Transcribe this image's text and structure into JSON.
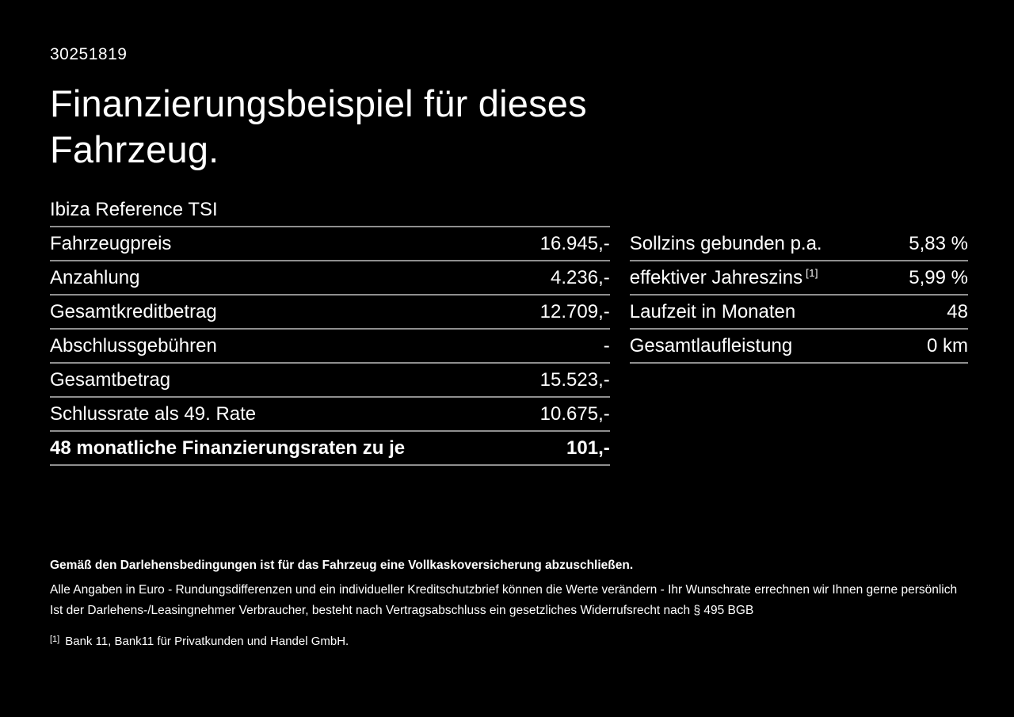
{
  "page": {
    "background_color": "#000000",
    "text_color": "#ffffff",
    "divider_color": "#8f8f8f"
  },
  "header": {
    "doc_number": "30251819",
    "title_line1": "Finanzierungsbeispiel für dieses",
    "title_line2": "Fahrzeug.",
    "vehicle_model": "Ibiza Reference TSI"
  },
  "finance_table": {
    "rows": [
      {
        "label": "Fahrzeugpreis",
        "value": "16.945,-"
      },
      {
        "label": "Anzahlung",
        "value": "4.236,-"
      },
      {
        "label": "Gesamtkreditbetrag",
        "value": "12.709,-"
      },
      {
        "label": "Abschlussgebühren",
        "value": "-"
      },
      {
        "label": "Gesamtbetrag",
        "value": "15.523,-"
      },
      {
        "label": "Schlussrate als 49. Rate",
        "value": "10.675,-"
      },
      {
        "label": "48 monatliche Finanzierungsraten zu je",
        "value": "101,-"
      }
    ]
  },
  "conditions_table": {
    "rows": [
      {
        "label": "Sollzins gebunden p.a.",
        "value": "5,83 %"
      },
      {
        "label": "effektiver Jahreszins",
        "superscript": "[1]",
        "value": "5,99 %"
      },
      {
        "label": "Laufzeit in Monaten",
        "value": "48"
      },
      {
        "label": "Gesamtlaufleistung",
        "value": "0 km"
      }
    ]
  },
  "footer": {
    "bold_note": "Gemäß den Darlehensbedingungen ist für das Fahrzeug eine Vollkaskoversicherung abzuschließen.",
    "note_line1": "Alle Angaben in Euro - Rundungsdifferenzen und ein individueller Kreditschutzbrief können die Werte verändern - Ihr Wunschrate errechnen wir Ihnen gerne persönlich",
    "note_line2": "Ist der Darlehens-/Leasingnehmer Verbraucher, besteht nach Vertragsabschluss ein gesetzliches Widerrufsrecht nach § 495 BGB",
    "footnote_marker": "[1]",
    "footnote_text": "Bank 11, Bank11 für Privatkunden und Handel GmbH."
  }
}
